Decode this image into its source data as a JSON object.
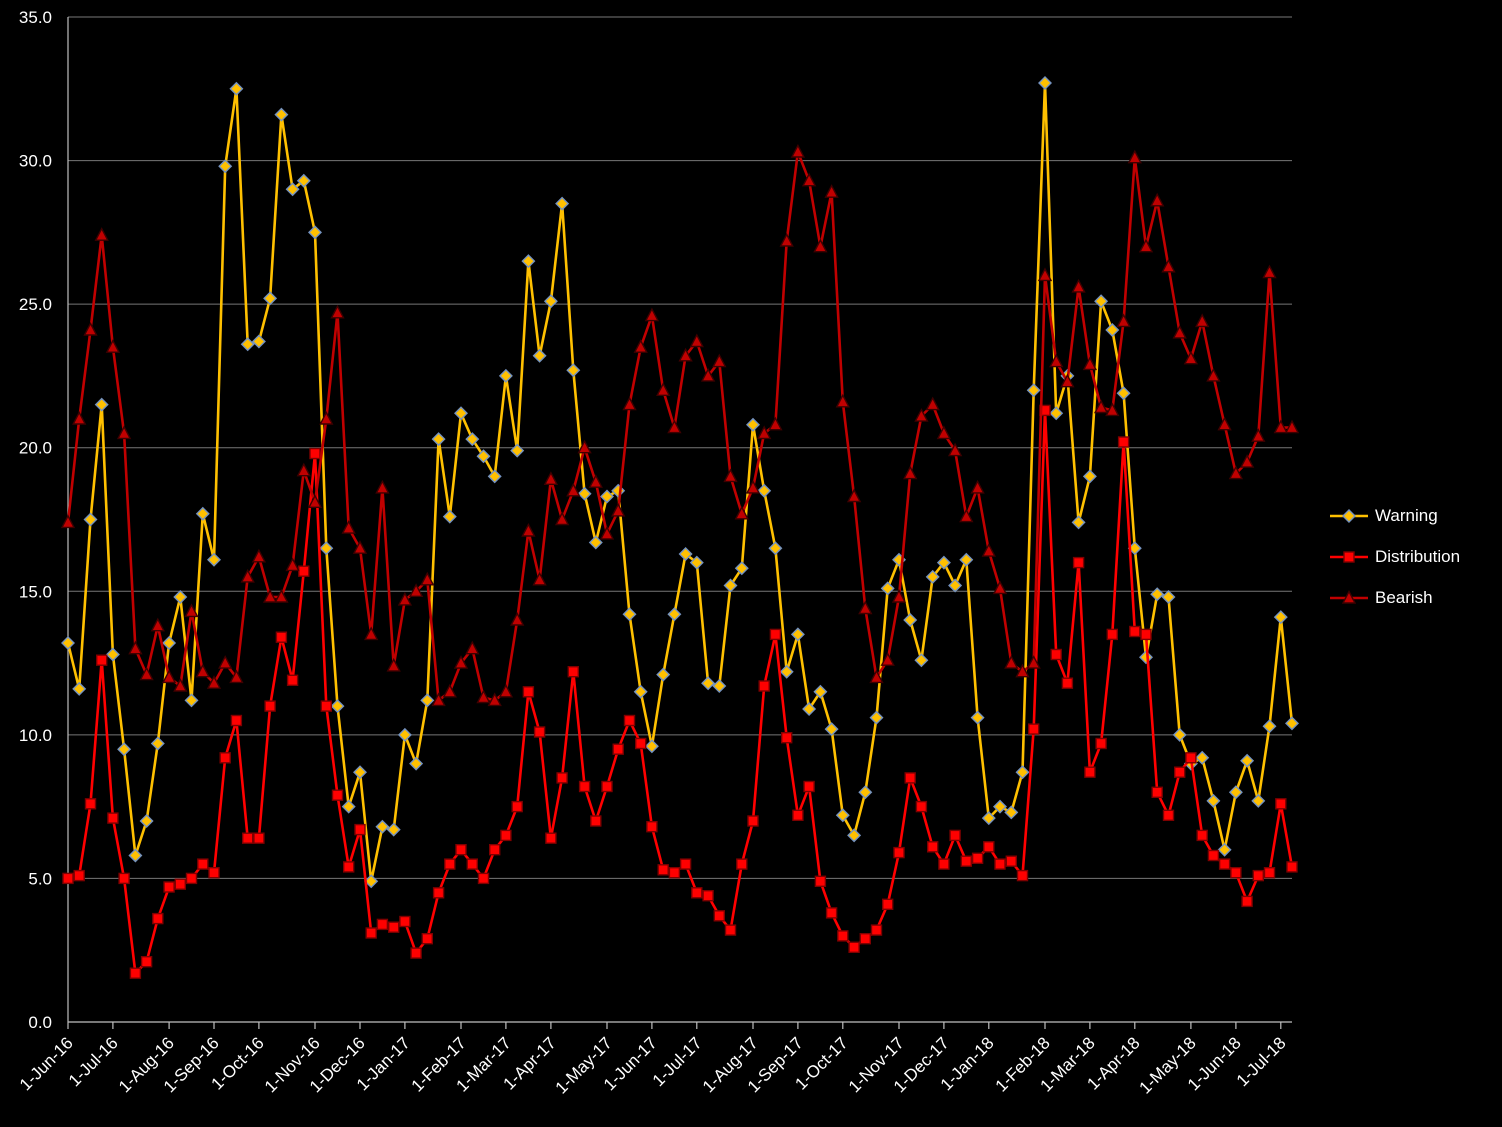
{
  "chart_data": {
    "type": "line",
    "title": "",
    "background_color": "#000000",
    "text_color": "#FFFFFF",
    "grid_color": "#D9D9D9",
    "axis_color": "#BFBFBF",
    "grid": true,
    "legend_position": "right",
    "ylim": [
      0,
      35
    ],
    "y_ticks": [
      {
        "value": 0,
        "label": "0.0"
      },
      {
        "value": 5,
        "label": "5.0"
      },
      {
        "value": 10,
        "label": "10.0"
      },
      {
        "value": 15,
        "label": "15.0"
      },
      {
        "value": 20,
        "label": "20.0"
      },
      {
        "value": 25,
        "label": "25.0"
      },
      {
        "value": 30,
        "label": "30.0"
      },
      {
        "value": 35,
        "label": "35.0"
      }
    ],
    "x_ticks": [
      {
        "index": 0,
        "label": "1-Jun-16"
      },
      {
        "index": 4,
        "label": "1-Jul-16"
      },
      {
        "index": 9,
        "label": "1-Aug-16"
      },
      {
        "index": 13,
        "label": "1-Sep-16"
      },
      {
        "index": 17,
        "label": "1-Oct-16"
      },
      {
        "index": 22,
        "label": "1-Nov-16"
      },
      {
        "index": 26,
        "label": "1-Dec-16"
      },
      {
        "index": 30,
        "label": "1-Jan-17"
      },
      {
        "index": 35,
        "label": "1-Feb-17"
      },
      {
        "index": 39,
        "label": "1-Mar-17"
      },
      {
        "index": 43,
        "label": "1-Apr-17"
      },
      {
        "index": 48,
        "label": "1-May-17"
      },
      {
        "index": 52,
        "label": "1-Jun-17"
      },
      {
        "index": 56,
        "label": "1-Jul-17"
      },
      {
        "index": 61,
        "label": "1-Aug-17"
      },
      {
        "index": 65,
        "label": "1-Sep-17"
      },
      {
        "index": 69,
        "label": "1-Oct-17"
      },
      {
        "index": 74,
        "label": "1-Nov-17"
      },
      {
        "index": 78,
        "label": "1-Dec-17"
      },
      {
        "index": 82,
        "label": "1-Jan-18"
      },
      {
        "index": 87,
        "label": "1-Feb-18"
      },
      {
        "index": 91,
        "label": "1-Mar-18"
      },
      {
        "index": 95,
        "label": "1-Apr-18"
      },
      {
        "index": 100,
        "label": "1-May-18"
      },
      {
        "index": 104,
        "label": "1-Jun-18"
      },
      {
        "index": 108,
        "label": "1-Jul-18"
      }
    ],
    "series": [
      {
        "name": "Warning",
        "color": "#FFC000",
        "marker": "diamond",
        "marker_outline": "#7593C0",
        "values": [
          13.2,
          11.6,
          17.5,
          21.5,
          12.8,
          9.5,
          5.8,
          7.0,
          9.7,
          13.2,
          14.8,
          11.2,
          17.7,
          16.1,
          29.8,
          32.5,
          23.6,
          23.7,
          25.2,
          31.6,
          29.0,
          29.3,
          27.5,
          16.5,
          11.0,
          7.5,
          8.7,
          4.9,
          6.8,
          6.7,
          10.0,
          9.0,
          11.2,
          20.3,
          17.6,
          21.2,
          20.3,
          19.7,
          19.0,
          22.5,
          19.9,
          26.5,
          23.2,
          25.1,
          28.5,
          22.7,
          18.4,
          16.7,
          18.3,
          18.5,
          14.2,
          11.5,
          9.6,
          12.1,
          14.2,
          16.3,
          16.0,
          11.8,
          11.7,
          15.2,
          15.8,
          20.8,
          18.5,
          16.5,
          12.2,
          13.5,
          10.9,
          11.5,
          10.2,
          7.2,
          6.5,
          8.0,
          10.6,
          15.1,
          16.1,
          14.0,
          12.6,
          15.5,
          16.0,
          15.2,
          16.1,
          10.6,
          7.1,
          7.5,
          7.3,
          8.7,
          22.0,
          32.7,
          21.2,
          22.5,
          17.4,
          19.0,
          25.1,
          24.1,
          21.9,
          16.5,
          12.7,
          14.9,
          14.8,
          10.0,
          9.0,
          9.2,
          7.7,
          6.0,
          8.0,
          9.1,
          7.7,
          10.3,
          14.1,
          10.4
        ]
      },
      {
        "name": "Distribution",
        "color": "#FF0000",
        "marker": "square",
        "marker_outline": "#7F0000",
        "values": [
          5.0,
          5.1,
          7.6,
          12.6,
          7.1,
          5.0,
          1.7,
          2.1,
          3.6,
          4.7,
          4.8,
          5.0,
          5.5,
          5.2,
          9.2,
          10.5,
          6.4,
          6.4,
          11.0,
          13.4,
          11.9,
          15.7,
          19.8,
          11.0,
          7.9,
          5.4,
          6.7,
          3.1,
          3.4,
          3.3,
          3.5,
          2.4,
          2.9,
          4.5,
          5.5,
          6.0,
          5.5,
          5.0,
          6.0,
          6.5,
          7.5,
          11.5,
          10.1,
          6.4,
          8.5,
          12.2,
          8.2,
          7.0,
          8.2,
          9.5,
          10.5,
          9.7,
          6.8,
          5.3,
          5.2,
          5.5,
          4.5,
          4.4,
          3.7,
          3.2,
          5.5,
          7.0,
          11.7,
          13.5,
          9.9,
          7.2,
          8.2,
          4.9,
          3.8,
          3.0,
          2.6,
          2.9,
          3.2,
          4.1,
          5.9,
          8.5,
          7.5,
          6.1,
          5.5,
          6.5,
          5.6,
          5.7,
          6.1,
          5.5,
          5.6,
          5.1,
          10.2,
          21.3,
          12.8,
          11.8,
          16.0,
          8.7,
          9.7,
          13.5,
          20.2,
          13.6,
          13.5,
          8.0,
          7.2,
          8.7,
          9.2,
          6.5,
          5.8,
          5.5,
          5.2,
          4.2,
          5.1,
          5.2,
          7.6,
          5.4
        ]
      },
      {
        "name": "Bearish",
        "color": "#C00000",
        "marker": "triangle",
        "marker_outline": "#3F0000",
        "values": [
          17.4,
          21.0,
          24.1,
          27.4,
          23.5,
          20.5,
          13.0,
          12.1,
          13.8,
          12.0,
          11.7,
          14.3,
          12.2,
          11.8,
          12.5,
          12.0,
          15.5,
          16.2,
          14.8,
          14.8,
          15.9,
          19.2,
          18.1,
          21.0,
          24.7,
          17.2,
          16.5,
          13.5,
          18.6,
          12.4,
          14.7,
          15.0,
          15.4,
          11.2,
          11.5,
          12.5,
          13.0,
          11.3,
          11.2,
          11.5,
          14.0,
          17.1,
          15.4,
          18.9,
          17.5,
          18.5,
          20.0,
          18.8,
          17.0,
          17.8,
          21.5,
          23.5,
          24.6,
          22.0,
          20.7,
          23.2,
          23.7,
          22.5,
          23.0,
          19.0,
          17.7,
          18.6,
          20.5,
          20.8,
          27.2,
          30.3,
          29.3,
          27.0,
          28.9,
          21.6,
          18.3,
          14.4,
          12.0,
          12.6,
          14.8,
          19.1,
          21.1,
          21.5,
          20.5,
          19.9,
          17.6,
          18.6,
          16.4,
          15.1,
          12.5,
          12.2,
          12.5,
          26.0,
          23.0,
          22.3,
          25.6,
          22.9,
          21.4,
          21.3,
          24.4,
          30.1,
          27.0,
          28.6,
          26.3,
          24.0,
          23.1,
          24.4,
          22.5,
          20.8,
          19.1,
          19.5,
          20.4,
          26.1,
          20.7,
          20.7
        ]
      }
    ]
  }
}
